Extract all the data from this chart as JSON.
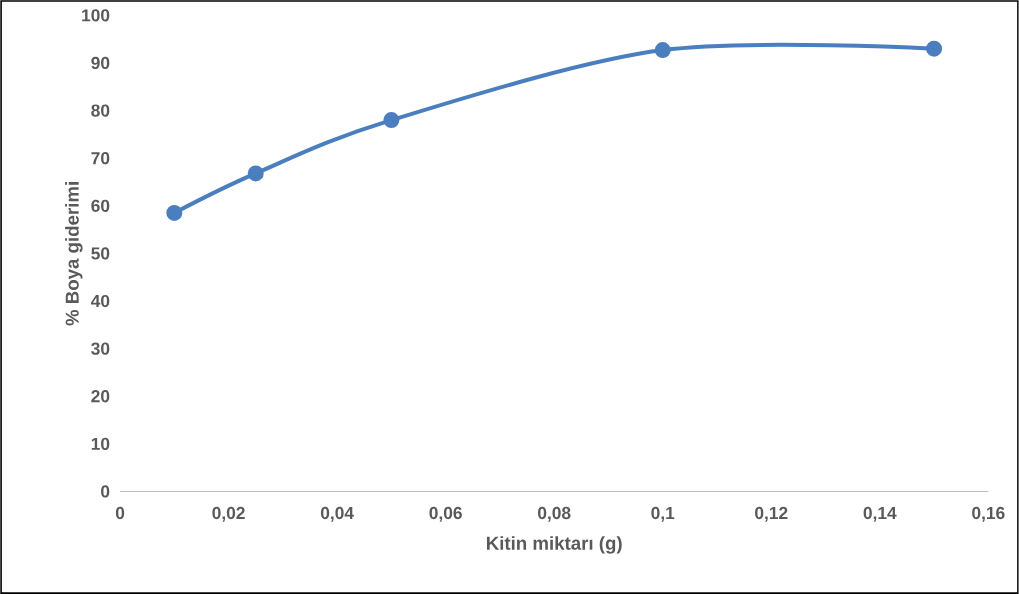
{
  "chart_data": {
    "type": "line",
    "xlabel": "Kitin miktarı (g)",
    "ylabel": "% Boya giderimi",
    "x": [
      0.01,
      0.025,
      0.05,
      0.1,
      0.15
    ],
    "values": [
      58.5,
      66.8,
      78,
      92.7,
      93
    ],
    "color": "#4a7ebf",
    "marker": "circle",
    "line_style": "solid",
    "xlim": [
      0,
      0.16
    ],
    "xticks": [
      0,
      {
        "value": 0.02,
        "label": "0,02"
      },
      {
        "value": 0.04,
        "label": "0,04"
      },
      {
        "value": 0.06,
        "label": "0,06"
      },
      {
        "value": 0.08,
        "label": "0,08"
      },
      {
        "value": 0.1,
        "label": "0,1"
      },
      {
        "value": 0.12,
        "label": "0,12"
      },
      {
        "value": 0.14,
        "label": "0,14"
      },
      {
        "value": 0.16,
        "label": "0,16"
      }
    ],
    "ylim": [
      0,
      100
    ],
    "yticks": [
      0,
      10,
      20,
      30,
      40,
      50,
      60,
      70,
      80,
      90,
      100
    ]
  }
}
